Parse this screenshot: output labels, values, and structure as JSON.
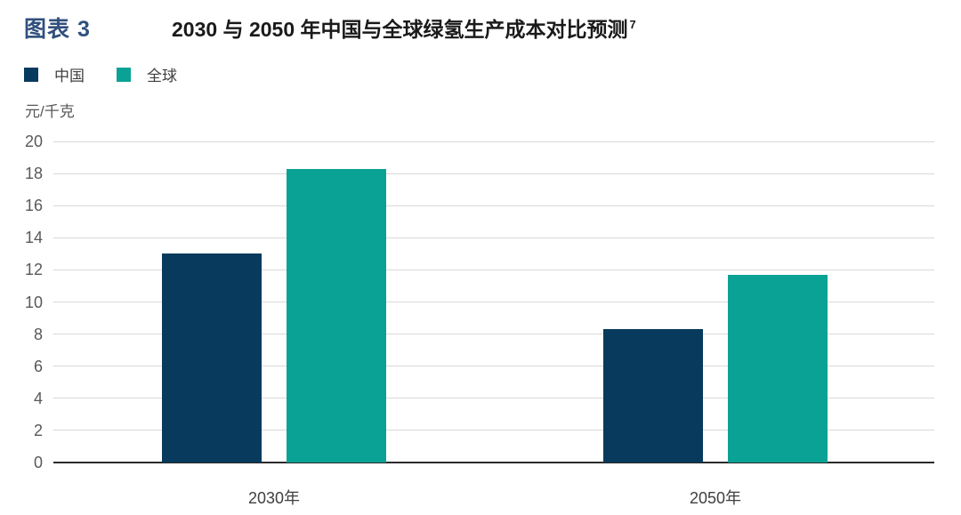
{
  "header": {
    "figure_label": "图表 3",
    "title": "2030 与 2050 年中国与全球绿氢生产成本对比预测",
    "footnote_marker": "7"
  },
  "colors": {
    "figure_label": "#31507d",
    "title": "#1a1a1a",
    "china_bar": "#073a5c",
    "global_bar": "#0aa294",
    "gridline": "#d9d9d9",
    "axis_line": "#2b2b2b",
    "tick_label": "#595959"
  },
  "chart_data": {
    "type": "bar",
    "title": "2030 与 2050 年中国与全球绿氢生产成本对比预测",
    "footnote_marker": "7",
    "unit_label": "元/千克",
    "ylabel": "元/千克",
    "xlabel": "",
    "categories": [
      "2030年",
      "2050年"
    ],
    "series": [
      {
        "name": "中国",
        "color": "#073a5c",
        "values": [
          13.0,
          8.3
        ]
      },
      {
        "name": "全球",
        "color": "#0aa294",
        "values": [
          18.3,
          11.7
        ]
      }
    ],
    "ylim": [
      0,
      20
    ],
    "ytick_step": 2,
    "yticks": [
      0,
      2,
      4,
      6,
      8,
      10,
      12,
      14,
      16,
      18,
      20
    ],
    "grid": true,
    "legend_position": "top-left"
  }
}
